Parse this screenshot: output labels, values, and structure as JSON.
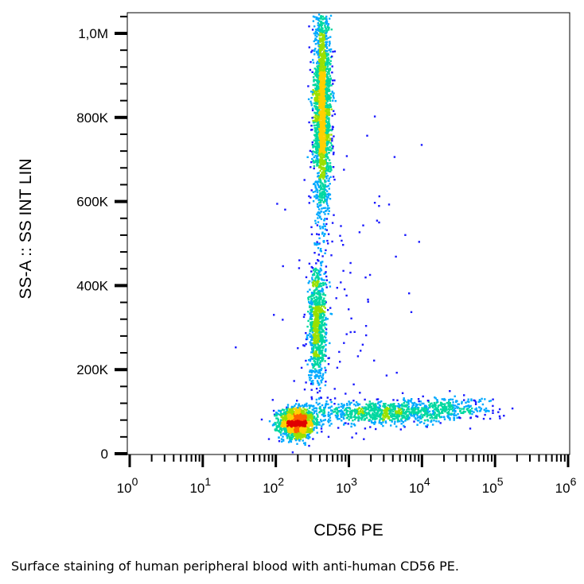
{
  "chart_data": {
    "type": "scatter",
    "subtype": "flow-cytometry density dot plot",
    "title": "",
    "xlabel": "CD56 PE",
    "ylabel": "SS-A :: SS INT LIN",
    "x_scale": "log",
    "xlim": [
      1,
      1000000
    ],
    "ylim": [
      0,
      1050000
    ],
    "x_ticks": [
      {
        "value": 1,
        "base": "10",
        "exp": "0"
      },
      {
        "value": 10,
        "base": "10",
        "exp": "1"
      },
      {
        "value": 100,
        "base": "10",
        "exp": "2"
      },
      {
        "value": 1000,
        "base": "10",
        "exp": "3"
      },
      {
        "value": 10000,
        "base": "10",
        "exp": "4"
      },
      {
        "value": 100000,
        "base": "10",
        "exp": "5"
      },
      {
        "value": 1000000,
        "base": "10",
        "exp": "6"
      }
    ],
    "y_ticks": [
      {
        "value": 0,
        "label": "0"
      },
      {
        "value": 200000,
        "label": "200K"
      },
      {
        "value": 400000,
        "label": "400K"
      },
      {
        "value": 600000,
        "label": "600K"
      },
      {
        "value": 800000,
        "label": "800K"
      },
      {
        "value": 1000000,
        "label": "1,0M"
      }
    ],
    "grid": false,
    "legend": "none",
    "density_colormap": [
      "#1a1aff",
      "#00aaff",
      "#00d8a0",
      "#9be000",
      "#ffd000",
      "#ff6000",
      "#e00000"
    ],
    "populations": [
      {
        "center_x": 190,
        "center_y": 75000,
        "spread_log_x": 0.12,
        "spread_y": 18000,
        "count": 1400
      },
      {
        "center_x": 420,
        "center_y": 820000,
        "spread_log_x": 0.06,
        "spread_y": 120000,
        "count": 2200
      },
      {
        "center_x": 360,
        "center_y": 310000,
        "spread_log_x": 0.06,
        "spread_y": 70000,
        "count": 900
      },
      {
        "center_x": 2500,
        "center_y": 100000,
        "spread_log_x": 0.45,
        "spread_y": 14000,
        "count": 800
      },
      {
        "center_x": 20000,
        "center_y": 110000,
        "spread_log_x": 0.35,
        "spread_y": 14000,
        "count": 300
      },
      {
        "center_x": 800,
        "center_y": 300000,
        "spread_log_x": 0.5,
        "spread_y": 250000,
        "count": 120
      }
    ]
  },
  "caption": "Surface staining of human peripheral blood with anti-human CD56 PE."
}
